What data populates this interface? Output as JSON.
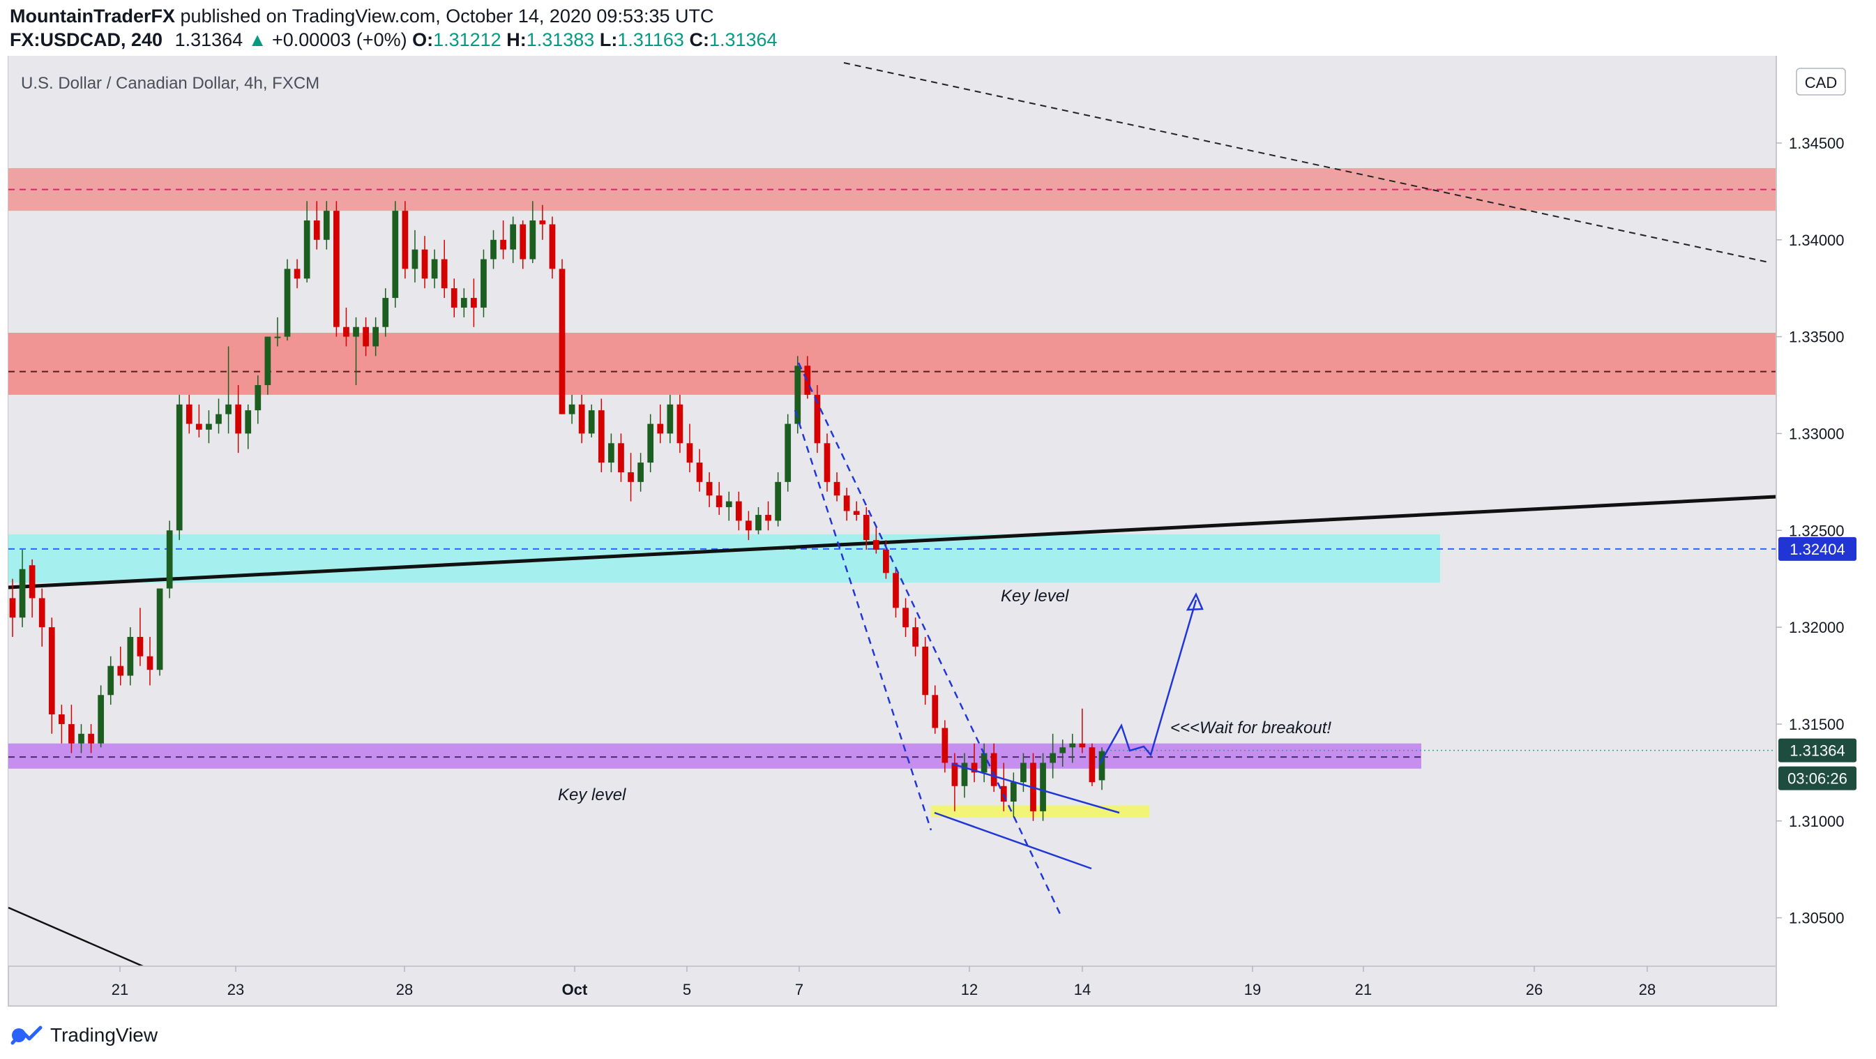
{
  "header": {
    "publisher": "MountainTraderFX",
    "published_text": "published on TradingView.com, October 14, 2020 09:53:35 UTC",
    "symbol": "FX:USDCAD, 240",
    "last_price": "1.31364",
    "change_arrow": "▲",
    "change": "+0.00003 (+0%)",
    "open_label": "O:",
    "open": "1.31212",
    "high_label": "H:",
    "high": "1.31383",
    "low_label": "L:",
    "low": "1.31163",
    "close_label": "C:",
    "close": "1.31364"
  },
  "chart_data": {
    "type": "candlestick",
    "title": "U.S. Dollar / Canadian Dollar, 4h, FXCM",
    "currency_button": "CAD",
    "ylim": [
      1.3025,
      1.3495
    ],
    "y_ticks": [
      "1.34500",
      "1.34000",
      "1.33500",
      "1.33000",
      "1.32500",
      "1.32000",
      "1.31500",
      "1.31000",
      "1.30500"
    ],
    "x_ticks": [
      "21",
      "23",
      "28",
      "Oct",
      "5",
      "7",
      "12",
      "14",
      "19",
      "21",
      "26",
      "28"
    ],
    "price_labels": {
      "level": "1.32404",
      "last": "1.31364",
      "countdown": "03:06:26"
    },
    "candles": [
      [
        1.3215,
        1.3225,
        1.3195,
        1.3205
      ],
      [
        1.3205,
        1.324,
        1.32,
        1.323
      ],
      [
        1.3232,
        1.3235,
        1.3205,
        1.3215
      ],
      [
        1.3215,
        1.322,
        1.319,
        1.32
      ],
      [
        1.32,
        1.3205,
        1.3145,
        1.3155
      ],
      [
        1.3155,
        1.316,
        1.314,
        1.315
      ],
      [
        1.315,
        1.316,
        1.3135,
        1.314
      ],
      [
        1.314,
        1.315,
        1.3135,
        1.3145
      ],
      [
        1.3145,
        1.315,
        1.3135,
        1.314
      ],
      [
        1.314,
        1.317,
        1.3138,
        1.3165
      ],
      [
        1.3165,
        1.3185,
        1.316,
        1.318
      ],
      [
        1.318,
        1.319,
        1.317,
        1.3175
      ],
      [
        1.3175,
        1.32,
        1.317,
        1.3195
      ],
      [
        1.3195,
        1.321,
        1.318,
        1.3185
      ],
      [
        1.3185,
        1.3195,
        1.317,
        1.3178
      ],
      [
        1.3178,
        1.322,
        1.3175,
        1.322
      ],
      [
        1.322,
        1.3255,
        1.3215,
        1.325
      ],
      [
        1.325,
        1.332,
        1.3245,
        1.3315
      ],
      [
        1.3315,
        1.332,
        1.33,
        1.3305
      ],
      [
        1.3305,
        1.3315,
        1.3298,
        1.3302
      ],
      [
        1.3302,
        1.3312,
        1.3295,
        1.3305
      ],
      [
        1.3305,
        1.3318,
        1.33,
        1.331
      ],
      [
        1.331,
        1.3345,
        1.33,
        1.3315
      ],
      [
        1.3315,
        1.3325,
        1.329,
        1.33
      ],
      [
        1.33,
        1.3315,
        1.3292,
        1.3312
      ],
      [
        1.3312,
        1.333,
        1.3305,
        1.3325
      ],
      [
        1.3325,
        1.335,
        1.332,
        1.335
      ],
      [
        1.335,
        1.336,
        1.3345,
        1.335
      ],
      [
        1.335,
        1.339,
        1.3348,
        1.3385
      ],
      [
        1.3385,
        1.339,
        1.3375,
        1.338
      ],
      [
        1.338,
        1.342,
        1.3378,
        1.341
      ],
      [
        1.341,
        1.342,
        1.3395,
        1.34
      ],
      [
        1.34,
        1.342,
        1.3395,
        1.3415
      ],
      [
        1.3415,
        1.342,
        1.335,
        1.3355
      ],
      [
        1.3355,
        1.3365,
        1.3345,
        1.335
      ],
      [
        1.335,
        1.336,
        1.3325,
        1.3355
      ],
      [
        1.3355,
        1.336,
        1.334,
        1.3345
      ],
      [
        1.3345,
        1.336,
        1.334,
        1.3355
      ],
      [
        1.3355,
        1.3375,
        1.335,
        1.337
      ],
      [
        1.337,
        1.342,
        1.3365,
        1.3415
      ],
      [
        1.3415,
        1.342,
        1.338,
        1.3385
      ],
      [
        1.3385,
        1.3405,
        1.3378,
        1.3395
      ],
      [
        1.3395,
        1.3402,
        1.3375,
        1.338
      ],
      [
        1.338,
        1.3395,
        1.3375,
        1.339
      ],
      [
        1.339,
        1.34,
        1.337,
        1.3375
      ],
      [
        1.3375,
        1.338,
        1.336,
        1.3365
      ],
      [
        1.3365,
        1.3375,
        1.336,
        1.337
      ],
      [
        1.337,
        1.338,
        1.3355,
        1.3365
      ],
      [
        1.3365,
        1.3395,
        1.336,
        1.339
      ],
      [
        1.339,
        1.3405,
        1.3385,
        1.34
      ],
      [
        1.34,
        1.341,
        1.339,
        1.3395
      ],
      [
        1.3395,
        1.3412,
        1.3388,
        1.3408
      ],
      [
        1.3408,
        1.341,
        1.3385,
        1.339
      ],
      [
        1.339,
        1.342,
        1.3388,
        1.341
      ],
      [
        1.341,
        1.3418,
        1.34,
        1.3408
      ],
      [
        1.3408,
        1.3412,
        1.338,
        1.3385
      ],
      [
        1.3385,
        1.339,
        1.331,
        1.331
      ],
      [
        1.331,
        1.332,
        1.3305,
        1.3315
      ],
      [
        1.3315,
        1.332,
        1.3295,
        1.33
      ],
      [
        1.33,
        1.3315,
        1.3298,
        1.3312
      ],
      [
        1.3312,
        1.3318,
        1.328,
        1.3285
      ],
      [
        1.3285,
        1.33,
        1.328,
        1.3295
      ],
      [
        1.3295,
        1.33,
        1.3275,
        1.328
      ],
      [
        1.328,
        1.329,
        1.3265,
        1.3275
      ],
      [
        1.3275,
        1.329,
        1.327,
        1.3285
      ],
      [
        1.3285,
        1.331,
        1.328,
        1.3305
      ],
      [
        1.3305,
        1.3315,
        1.3295,
        1.33
      ],
      [
        1.33,
        1.332,
        1.3295,
        1.3315
      ],
      [
        1.3315,
        1.332,
        1.329,
        1.3295
      ],
      [
        1.3295,
        1.3305,
        1.328,
        1.3285
      ],
      [
        1.3285,
        1.3292,
        1.327,
        1.3275
      ],
      [
        1.3275,
        1.328,
        1.3262,
        1.3268
      ],
      [
        1.3268,
        1.3275,
        1.3258,
        1.3262
      ],
      [
        1.3262,
        1.327,
        1.3255,
        1.3265
      ],
      [
        1.3265,
        1.327,
        1.325,
        1.3255
      ],
      [
        1.3255,
        1.326,
        1.3245,
        1.325
      ],
      [
        1.325,
        1.3262,
        1.3248,
        1.3258
      ],
      [
        1.3258,
        1.3265,
        1.325,
        1.3255
      ],
      [
        1.3255,
        1.328,
        1.3252,
        1.3275
      ],
      [
        1.3275,
        1.331,
        1.327,
        1.3305
      ],
      [
        1.3305,
        1.334,
        1.33,
        1.3335
      ],
      [
        1.3335,
        1.334,
        1.3318,
        1.332
      ],
      [
        1.332,
        1.3325,
        1.329,
        1.3295
      ],
      [
        1.3295,
        1.33,
        1.327,
        1.3275
      ],
      [
        1.3275,
        1.328,
        1.3265,
        1.3268
      ],
      [
        1.3268,
        1.3272,
        1.3255,
        1.326
      ],
      [
        1.326,
        1.3265,
        1.3255,
        1.3258
      ],
      [
        1.3258,
        1.3262,
        1.324,
        1.3245
      ],
      [
        1.3245,
        1.3252,
        1.3238,
        1.324
      ],
      [
        1.324,
        1.3245,
        1.3225,
        1.3228
      ],
      [
        1.3228,
        1.323,
        1.3205,
        1.321
      ],
      [
        1.321,
        1.3215,
        1.3195,
        1.32
      ],
      [
        1.32,
        1.3205,
        1.3185,
        1.319
      ],
      [
        1.319,
        1.3195,
        1.316,
        1.3165
      ],
      [
        1.3165,
        1.317,
        1.3145,
        1.3148
      ],
      [
        1.3148,
        1.3152,
        1.3125,
        1.313
      ],
      [
        1.313,
        1.3135,
        1.3105,
        1.3118
      ],
      [
        1.3118,
        1.3135,
        1.3112,
        1.313
      ],
      [
        1.313,
        1.314,
        1.312,
        1.3125
      ],
      [
        1.3125,
        1.314,
        1.312,
        1.3135
      ],
      [
        1.3135,
        1.314,
        1.3115,
        1.3118
      ],
      [
        1.3118,
        1.313,
        1.3105,
        1.311
      ],
      [
        1.311,
        1.3125,
        1.3102,
        1.312
      ],
      [
        1.312,
        1.3135,
        1.3115,
        1.313
      ],
      [
        1.313,
        1.3135,
        1.31,
        1.3105
      ],
      [
        1.3105,
        1.3135,
        1.31,
        1.313
      ],
      [
        1.313,
        1.3145,
        1.3122,
        1.3135
      ],
      [
        1.3135,
        1.3142,
        1.3128,
        1.3138
      ],
      [
        1.3138,
        1.3145,
        1.313,
        1.314
      ],
      [
        1.314,
        1.3158,
        1.3135,
        1.3138
      ],
      [
        1.3138,
        1.314,
        1.3118,
        1.312
      ],
      [
        1.3121,
        1.3138,
        1.3116,
        1.3136
      ]
    ],
    "zones": [
      {
        "name": "top-resistance-zone",
        "from": 1.3415,
        "to": 1.3437,
        "color": "#ef9a9a"
      },
      {
        "name": "upper-resistance-zone",
        "from": 1.332,
        "to": 1.3352,
        "color": "#f28b8b"
      },
      {
        "name": "key-level-zone-upper",
        "from": 1.3223,
        "to": 1.3248,
        "color": "#9feff0"
      },
      {
        "name": "key-level-zone-lower",
        "from": 1.3127,
        "to": 1.314,
        "color": "#c07ef0"
      },
      {
        "name": "support-zone-yellow",
        "from": 1.3102,
        "to": 1.3108,
        "color": "#f3f56a"
      }
    ],
    "annotations": {
      "key_level_upper": "Key level",
      "key_level_lower": "Key level",
      "breakout_note": "<<<Wait for breakout!"
    }
  },
  "footer": {
    "brand": "TradingView",
    "brand_icon": "tradingview-logo-icon"
  }
}
